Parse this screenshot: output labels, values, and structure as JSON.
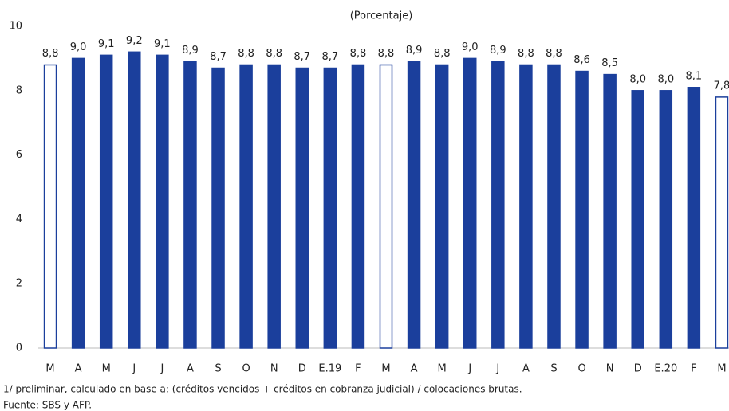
{
  "chart_data": {
    "type": "bar",
    "title": "(Porcentaje)",
    "categories": [
      "M",
      "A",
      "M",
      "J",
      "J",
      "A",
      "S",
      "O",
      "N",
      "D",
      "E.19",
      "F",
      "M",
      "A",
      "M",
      "J",
      "J",
      "A",
      "S",
      "O",
      "N",
      "D",
      "E.20",
      "F",
      "M"
    ],
    "values": [
      8.8,
      9.0,
      9.1,
      9.2,
      9.1,
      8.9,
      8.7,
      8.8,
      8.8,
      8.7,
      8.7,
      8.8,
      8.8,
      8.9,
      8.8,
      9.0,
      8.9,
      8.8,
      8.8,
      8.6,
      8.5,
      8.0,
      8.0,
      8.1,
      7.8
    ],
    "value_labels": [
      "8,8",
      "9,0",
      "9,1",
      "9,2",
      "9,1",
      "8,9",
      "8,7",
      "8,8",
      "8,8",
      "8,7",
      "8,7",
      "8,8",
      "8,8",
      "8,9",
      "8,8",
      "9,0",
      "8,9",
      "8,8",
      "8,8",
      "8,6",
      "8,5",
      "8,0",
      "8,0",
      "8,1",
      "7,8"
    ],
    "fill_colors": [
      "#ffffff",
      "#1b3f9c",
      "#1b3f9c",
      "#1b3f9c",
      "#1b3f9c",
      "#1b3f9c",
      "#1b3f9c",
      "#1b3f9c",
      "#1b3f9c",
      "#1b3f9c",
      "#1b3f9c",
      "#1b3f9c",
      "#ffffff",
      "#1b3f9c",
      "#1b3f9c",
      "#1b3f9c",
      "#1b3f9c",
      "#1b3f9c",
      "#1b3f9c",
      "#1b3f9c",
      "#1b3f9c",
      "#1b3f9c",
      "#1b3f9c",
      "#1b3f9c",
      "#ffffff"
    ],
    "edge_color": "#1b3f9c",
    "ylim": [
      0,
      10
    ],
    "yticks": [
      0,
      2,
      4,
      6,
      8,
      10
    ],
    "grid": false
  },
  "notes": [
    "1/ preliminar,  calculado en base a: (créditos vencidos + créditos en cobranza judicial) / colocaciones brutas.",
    "Fuente: SBS y AFP."
  ]
}
